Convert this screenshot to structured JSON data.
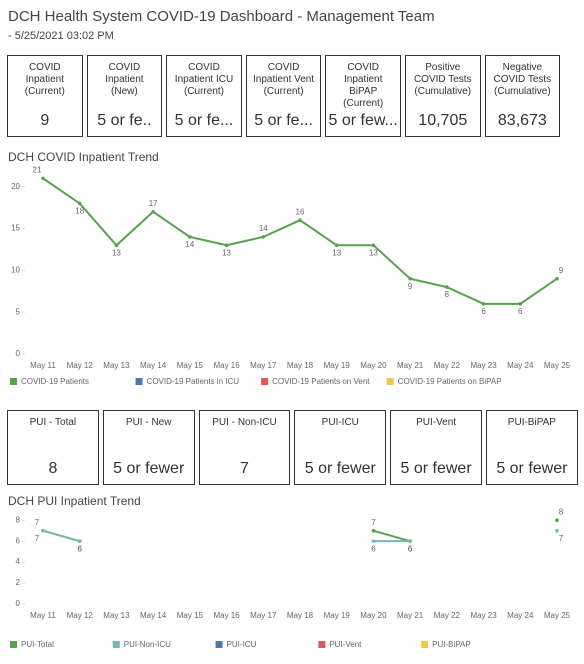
{
  "header": {
    "title": "DCH Health System COVID-19 Dashboard - Management Team",
    "subtitle": "- 5/25/2021 03:02 PM"
  },
  "kpis": [
    {
      "label": "COVID Inpatient (Current)",
      "value": "9"
    },
    {
      "label": "COVID Inpatient (New)",
      "value": "5 or fe.."
    },
    {
      "label": "COVID Inpatient ICU (Current)",
      "value": "5 or fe..."
    },
    {
      "label": "COVID Inpatient Vent (Current)",
      "value": "5 or fe..."
    },
    {
      "label": "COVID Inpatient BiPAP (Current)",
      "value": "5 or few..."
    },
    {
      "label": "Positive COVID Tests (Cumulative)",
      "value": "10,705"
    },
    {
      "label": "Negative COVID Tests (Cumulative)",
      "value": "83,673"
    }
  ],
  "pui_kpis": [
    {
      "label": "PUI - Total",
      "value": "8"
    },
    {
      "label": "PUI - New",
      "value": "5 or fewer"
    },
    {
      "label": "PUI - Non-ICU",
      "value": "7"
    },
    {
      "label": "PUI-ICU",
      "value": "5 or fewer"
    },
    {
      "label": "PUI-Vent",
      "value": "5 or fewer"
    },
    {
      "label": "PUI-BiPAP",
      "value": "5 or fewer"
    }
  ],
  "chart_data": [
    {
      "type": "line",
      "title": "DCH COVID Inpatient Trend",
      "categories": [
        "May 11",
        "May 12",
        "May 13",
        "May 14",
        "May 15",
        "May 16",
        "May 17",
        "May 18",
        "May 19",
        "May 20",
        "May 21",
        "May 22",
        "May 23",
        "May 24",
        "May 25"
      ],
      "series": [
        {
          "name": "COVID-19 Patients",
          "color": "#59a14f",
          "values": [
            21,
            18,
            13,
            17,
            14,
            13,
            14,
            16,
            13,
            13,
            9,
            8,
            6,
            6,
            9
          ]
        },
        {
          "name": "COVID-19 Patients in ICU",
          "color": "#4e79a7",
          "values": [
            null,
            null,
            null,
            null,
            null,
            null,
            null,
            null,
            null,
            null,
            null,
            null,
            null,
            null,
            null
          ]
        },
        {
          "name": "COVID-19 Patients on Vent",
          "color": "#e15759",
          "values": [
            null,
            null,
            null,
            null,
            null,
            null,
            null,
            null,
            null,
            null,
            null,
            null,
            null,
            null,
            null
          ]
        },
        {
          "name": "COVID-19 Patients on BiPAP",
          "color": "#edc948",
          "values": [
            null,
            null,
            null,
            null,
            null,
            null,
            null,
            null,
            null,
            null,
            null,
            null,
            null,
            null,
            null
          ]
        }
      ],
      "ylim": [
        0,
        22
      ],
      "yticks": [
        0,
        5,
        10,
        15,
        20
      ],
      "value_labels_shown": true
    },
    {
      "type": "line",
      "title": "DCH PUI Inpatient Trend",
      "categories": [
        "May 11",
        "May 12",
        "May 13",
        "May 14",
        "May 15",
        "May 16",
        "May 17",
        "May 18",
        "May 19",
        "May 20",
        "May 21",
        "May 22",
        "May 23",
        "May 24",
        "May 25"
      ],
      "series": [
        {
          "name": "PUI-Total",
          "color": "#59a14f",
          "values": [
            7,
            6,
            null,
            null,
            null,
            null,
            null,
            null,
            null,
            7,
            6,
            null,
            null,
            null,
            8
          ]
        },
        {
          "name": "PUI-Non-ICU",
          "color": "#76b7b2",
          "values": [
            7,
            6,
            null,
            null,
            null,
            null,
            null,
            null,
            null,
            6,
            6,
            null,
            null,
            null,
            7
          ]
        },
        {
          "name": "PUI-ICU",
          "color": "#4e79a7",
          "values": [
            null,
            null,
            null,
            null,
            null,
            null,
            null,
            null,
            null,
            null,
            null,
            null,
            null,
            null,
            null
          ]
        },
        {
          "name": "PUI-Vent",
          "color": "#e15759",
          "values": [
            null,
            null,
            null,
            null,
            null,
            null,
            null,
            null,
            null,
            null,
            null,
            null,
            null,
            null,
            null
          ]
        },
        {
          "name": "PUI-BiPAP",
          "color": "#edc948",
          "values": [
            null,
            null,
            null,
            null,
            null,
            null,
            null,
            null,
            null,
            null,
            null,
            null,
            null,
            null,
            null
          ]
        }
      ],
      "ylim": [
        0,
        8.5
      ],
      "yticks": [
        0,
        2,
        4,
        6,
        8
      ],
      "value_labels_shown": true
    }
  ]
}
